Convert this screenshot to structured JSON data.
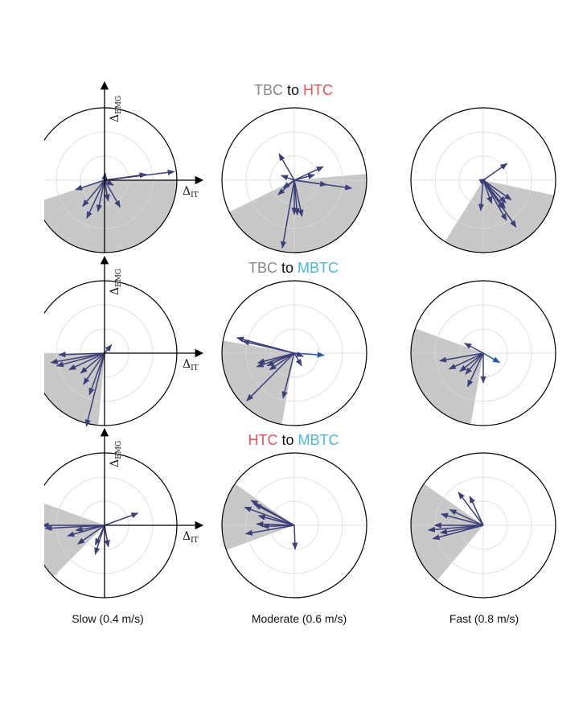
{
  "colors": {
    "TBC": "#888888",
    "HTC": "#e8505b",
    "MBTC": "#4ab8dc",
    "arrow": "#3c3f78",
    "arrow_alt": "#245a9c",
    "sector": "#c8c8c8",
    "grid": "#d9d9d9",
    "circle": "#000000"
  },
  "rows": [
    {
      "from": "TBC",
      "to_word": "to",
      "target": "HTC"
    },
    {
      "from": "TBC",
      "to_word": "to",
      "target": "MBTC"
    },
    {
      "from": "HTC",
      "to_word": "to",
      "target": "MBTC"
    }
  ],
  "columns": [
    {
      "label": "Slow (0.4 m/s)"
    },
    {
      "label": "Moderate (0.6 m/s)"
    },
    {
      "label": "Fast (0.8 m/s)"
    }
  ],
  "axes": {
    "x_symbol": "Δ",
    "x_sub": "IT",
    "y_symbol": "Δ",
    "y_sub": "EMG"
  },
  "chart_data": {
    "type": "polar-vector",
    "x_axis_label": "ΔIT",
    "y_axis_label": "ΔEMG",
    "r_max": 1.0,
    "panels": [
      {
        "row": 0,
        "col": 0,
        "sector_deg": [
          198,
          360
        ],
        "vectors": [
          [
            0.97,
            7
          ],
          [
            0.58,
            8
          ],
          [
            0.1,
            85
          ],
          [
            0.42,
            198
          ],
          [
            0.47,
            230
          ],
          [
            0.58,
            245
          ],
          [
            0.44,
            258
          ],
          [
            0.29,
            280
          ],
          [
            0.43,
            300
          ],
          [
            0.14,
            330
          ]
        ]
      },
      {
        "row": 0,
        "col": 1,
        "sector_deg": [
          206,
          365
        ],
        "vectors": [
          [
            0.42,
            120
          ],
          [
            0.44,
            25
          ],
          [
            0.29,
            15
          ],
          [
            0.45,
            352
          ],
          [
            0.8,
            352
          ],
          [
            0.19,
            160
          ],
          [
            0.3,
            222
          ],
          [
            0.19,
            215
          ],
          [
            0.47,
            270
          ],
          [
            0.48,
            275
          ],
          [
            0.51,
            282
          ],
          [
            0.95,
            260
          ]
        ]
      },
      {
        "row": 0,
        "col": 2,
        "sector_deg": [
          238,
          348
        ],
        "vectors": [
          [
            0.4,
            35
          ],
          [
            0.04,
            30
          ],
          [
            0.42,
            265
          ],
          [
            0.34,
            290
          ],
          [
            0.44,
            315
          ],
          [
            0.47,
            325
          ],
          [
            0.49,
            305
          ],
          [
            0.49,
            308
          ],
          [
            0.64,
            300
          ],
          [
            0.79,
            305
          ]
        ]
      },
      {
        "row": 1,
        "col": 0,
        "sector_deg": [
          180,
          265
        ],
        "vectors": [
          [
            0.15,
            50
          ],
          [
            0.63,
            182
          ],
          [
            0.75,
            190
          ],
          [
            0.68,
            195
          ],
          [
            0.54,
            205
          ],
          [
            0.43,
            220
          ],
          [
            0.52,
            236
          ],
          [
            0.61,
            250
          ],
          [
            1.04,
            256
          ]
        ]
      },
      {
        "row": 1,
        "col": 1,
        "sector_deg": [
          170,
          260
        ],
        "vectors": [
          [
            0.41,
            356
          ],
          [
            0.13,
            340
          ],
          [
            0.82,
            165
          ],
          [
            0.73,
            167
          ],
          [
            0.52,
            195
          ],
          [
            0.55,
            200
          ],
          [
            0.41,
            205
          ],
          [
            0.41,
            214
          ],
          [
            0.93,
            225
          ],
          [
            0.64,
            256
          ],
          [
            0.2,
            300
          ]
        ]
      },
      {
        "row": 1,
        "col": 2,
        "sector_deg": [
          160,
          260
        ],
        "vectors": [
          [
            0.26,
            330
          ],
          [
            0.29,
            152
          ],
          [
            0.61,
            190
          ],
          [
            0.52,
            205
          ],
          [
            0.41,
            218
          ],
          [
            0.38,
            230
          ],
          [
            0.51,
            245
          ],
          [
            0.41,
            270
          ]
        ]
      },
      {
        "row": 2,
        "col": 0,
        "sector_deg": [
          160,
          225
        ],
        "vectors": [
          [
            0.49,
            20
          ],
          [
            0.3,
            280
          ],
          [
            0.86,
            180
          ],
          [
            0.82,
            183
          ],
          [
            0.4,
            190
          ],
          [
            0.53,
            196
          ],
          [
            0.45,
            215
          ],
          [
            0.3,
            245
          ],
          [
            0.42,
            252
          ]
        ]
      },
      {
        "row": 2,
        "col": 1,
        "sector_deg": [
          145,
          200
        ],
        "vectors": [
          [
            0.51,
            165
          ],
          [
            0.62,
            152
          ],
          [
            0.69,
            150
          ],
          [
            0.73,
            160
          ],
          [
            0.52,
            178
          ],
          [
            0.44,
            182
          ],
          [
            0.68,
            190
          ],
          [
            0.33,
            272
          ]
        ]
      },
      {
        "row": 2,
        "col": 2,
        "sector_deg": [
          145,
          230
        ],
        "vectors": [
          [
            0.57,
            127
          ],
          [
            0.44,
            115
          ],
          [
            0.6,
            165
          ],
          [
            0.51,
            155
          ],
          [
            0.76,
            185
          ],
          [
            0.67,
            180
          ],
          [
            0.72,
            195
          ],
          [
            0.6,
            190
          ]
        ]
      }
    ]
  }
}
